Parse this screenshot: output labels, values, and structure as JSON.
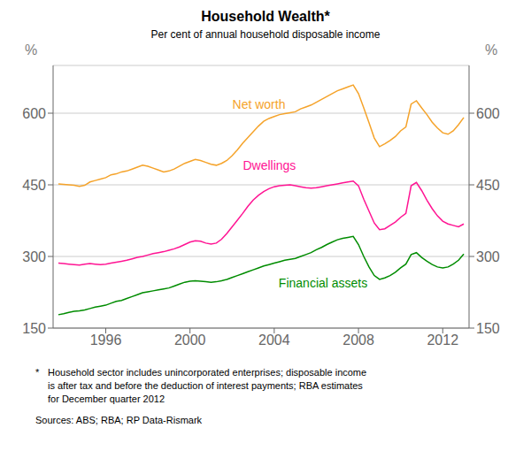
{
  "chart_data": {
    "type": "line",
    "title": "Household Wealth*",
    "subtitle": "Per cent of annual household disposable income",
    "ylabel": "%",
    "y2label": "%",
    "xlim": [
      1993.5,
      2013.25
    ],
    "xticks": [
      1996,
      2000,
      2004,
      2008,
      2012
    ],
    "ylim": [
      150,
      700
    ],
    "yticks": [
      150,
      300,
      450,
      600
    ],
    "y2lim": [
      150,
      700
    ],
    "y2ticks": [
      150,
      300,
      450,
      600
    ],
    "grid": true,
    "x": [
      1993.75,
      1994,
      1994.25,
      1994.5,
      1994.75,
      1995,
      1995.25,
      1995.5,
      1995.75,
      1996,
      1996.25,
      1996.5,
      1996.75,
      1997,
      1997.25,
      1997.5,
      1997.75,
      1998,
      1998.25,
      1998.5,
      1998.75,
      1999,
      1999.25,
      1999.5,
      1999.75,
      2000,
      2000.25,
      2000.5,
      2000.75,
      2001,
      2001.25,
      2001.5,
      2001.75,
      2002,
      2002.25,
      2002.5,
      2002.75,
      2003,
      2003.25,
      2003.5,
      2003.75,
      2004,
      2004.25,
      2004.5,
      2004.75,
      2005,
      2005.25,
      2005.5,
      2005.75,
      2006,
      2006.25,
      2006.5,
      2006.75,
      2007,
      2007.25,
      2007.5,
      2007.75,
      2008,
      2008.25,
      2008.5,
      2008.75,
      2009,
      2009.25,
      2009.5,
      2009.75,
      2010,
      2010.25,
      2010.5,
      2010.75,
      2011,
      2011.25,
      2011.5,
      2011.75,
      2012,
      2012.25,
      2012.5,
      2012.75,
      2013
    ],
    "series": [
      {
        "name": "Net worth",
        "color": "#F5A32A",
        "values": [
          452,
          451,
          450,
          449,
          447,
          449,
          456,
          459,
          462,
          465,
          471,
          473,
          477,
          479,
          483,
          487,
          491,
          489,
          485,
          481,
          477,
          479,
          483,
          489,
          495,
          499,
          503,
          501,
          497,
          493,
          491,
          495,
          501,
          511,
          523,
          537,
          549,
          561,
          573,
          583,
          589,
          593,
          597,
          599,
          601,
          603,
          609,
          613,
          617,
          623,
          629,
          635,
          641,
          647,
          651,
          655,
          659,
          641,
          611,
          580,
          548,
          530,
          536,
          543,
          551,
          563,
          571,
          619,
          626,
          611,
          597,
          581,
          569,
          559,
          556,
          563,
          576,
          591
        ]
      },
      {
        "name": "Dwellings",
        "color": "#FF1493",
        "values": [
          286,
          285,
          284,
          283,
          282,
          284,
          285,
          284,
          283,
          284,
          286,
          288,
          290,
          292,
          295,
          298,
          300,
          303,
          306,
          308,
          310,
          313,
          316,
          320,
          325,
          330,
          333,
          332,
          328,
          326,
          328,
          336,
          348,
          362,
          376,
          390,
          405,
          418,
          428,
          436,
          442,
          446,
          448,
          449,
          450,
          448,
          446,
          444,
          443,
          444,
          446,
          448,
          450,
          452,
          454,
          456,
          458,
          448,
          420,
          395,
          370,
          356,
          358,
          365,
          372,
          382,
          390,
          448,
          455,
          438,
          418,
          400,
          385,
          374,
          368,
          365,
          362,
          368
        ]
      },
      {
        "name": "Financial assets",
        "color": "#008C00",
        "values": [
          178,
          180,
          183,
          185,
          186,
          188,
          191,
          194,
          196,
          198,
          202,
          206,
          208,
          212,
          216,
          220,
          224,
          226,
          228,
          230,
          232,
          234,
          238,
          242,
          246,
          248,
          249,
          248,
          247,
          246,
          247,
          249,
          252,
          256,
          260,
          264,
          268,
          272,
          276,
          280,
          283,
          286,
          289,
          292,
          294,
          296,
          300,
          304,
          308,
          314,
          319,
          325,
          330,
          335,
          338,
          340,
          342,
          325,
          300,
          278,
          260,
          252,
          255,
          260,
          267,
          276,
          284,
          304,
          308,
          298,
          290,
          283,
          278,
          276,
          278,
          284,
          292,
          305
        ]
      }
    ],
    "annotations": [
      {
        "text": "Net worth",
        "x": 2001.8,
        "y": 618,
        "color": "#F5A32A"
      },
      {
        "text": "Dwellings",
        "x": 2002.3,
        "y": 490,
        "color": "#FF1493"
      },
      {
        "text": "Financial assets",
        "x": 2004.0,
        "y": 245,
        "color": "#008C00"
      }
    ],
    "footnote_marker": "*",
    "footnote_lines": [
      "Household sector includes unincorporated enterprises; disposable income",
      "is after tax and before the deduction of interest payments; RBA estimates",
      "for December quarter 2012"
    ],
    "sources": "Sources: ABS; RBA; RP Data-Rismark"
  }
}
